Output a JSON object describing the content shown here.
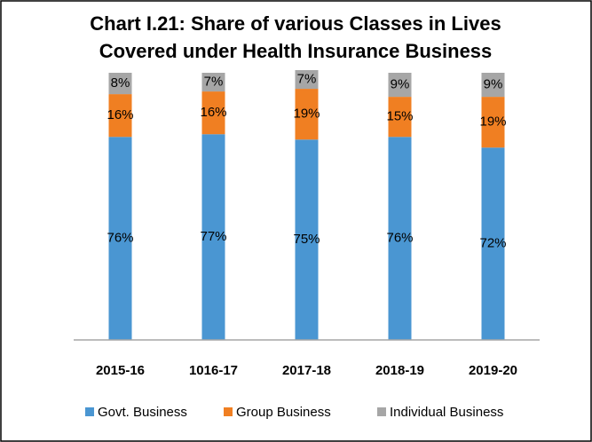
{
  "chart_data": {
    "type": "stacked_bar",
    "title": [
      "Chart I.21: Share of various Classes in Lives",
      "Covered under Health Insurance Business"
    ],
    "categories": [
      "2015-16",
      "1016-17",
      "2017-18",
      "2018-19",
      "2019-20"
    ],
    "series": [
      {
        "name": "Govt. Business",
        "color": "#4a96d2",
        "values": [
          76,
          77,
          75,
          76,
          72
        ],
        "value_labels": [
          "76%",
          "77%",
          "75%",
          "76%",
          "72%"
        ]
      },
      {
        "name": "Group Business",
        "color": "#f07f22",
        "values": [
          16,
          16,
          19,
          15,
          19
        ],
        "value_labels": [
          "16%",
          "16%",
          "19%",
          "15%",
          "19%"
        ]
      },
      {
        "name": "Individual Business",
        "color": "#a6a6a6",
        "values": [
          8,
          7,
          7,
          9,
          9
        ],
        "value_labels": [
          "8%",
          "7%",
          "7%",
          "9%",
          "9%"
        ]
      }
    ],
    "ylim": [
      0,
      100
    ],
    "legend": "bottom"
  }
}
